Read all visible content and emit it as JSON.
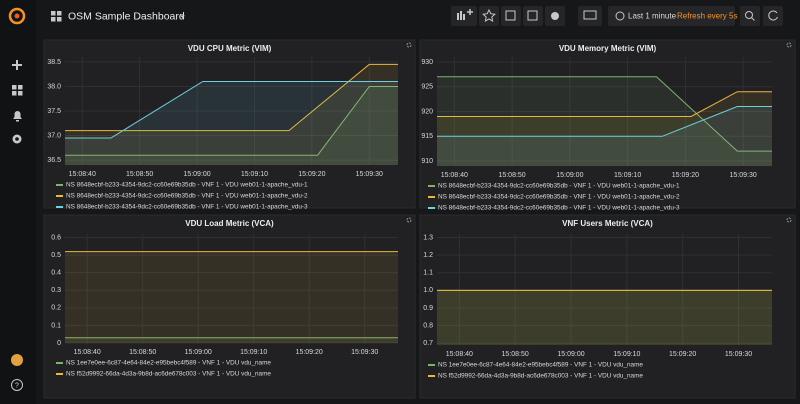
{
  "header": {
    "title": "OSM Sample Dashboard",
    "time_range": "Last 1 minute",
    "refresh": "Refresh every 5s"
  },
  "chart_data": [
    {
      "type": "line",
      "title": "VDU CPU Metric (VIM)",
      "area": true,
      "grid": true,
      "xlim": [
        "15:08:37",
        "15:09:35"
      ],
      "xticks": [
        "15:08:40",
        "15:08:50",
        "15:09:00",
        "15:09:10",
        "15:09:20",
        "15:09:30"
      ],
      "ylim": [
        36.4,
        38.6
      ],
      "yticks": [
        36.5,
        {
          "value": 37,
          "label": "37.0"
        },
        37.5,
        {
          "value": 38,
          "label": "38.0"
        },
        38.5
      ],
      "series": [
        {
          "name": "NS 8648ecbf-b233-4354-9dc2-cc60e69b35db - VNF 1 - VDU web01-1-apache_vdu-1",
          "color": "#7eb26d",
          "x": [
            "15:08:37",
            "15:09:21",
            "15:09:30",
            "15:09:35"
          ],
          "values": [
            36.6,
            36.6,
            38.0,
            38.0
          ]
        },
        {
          "name": "NS 8648ecbf-b233-4354-9dc2-cc60e69b35db - VNF 1 - VDU web01-1-apache_vdu-2",
          "color": "#eab839",
          "x": [
            "15:08:37",
            "15:09:16",
            "15:09:30",
            "15:09:35"
          ],
          "values": [
            37.1,
            37.1,
            38.45,
            38.45
          ]
        },
        {
          "name": "NS 8648ecbf-b233-4354-9dc2-cc60e69b35db - VNF 1 - VDU web01-1-apache_vdu-3",
          "color": "#6ed0e0",
          "x": [
            "15:08:37",
            "15:08:45",
            "15:09:01",
            "15:09:35"
          ],
          "values": [
            36.95,
            36.95,
            38.1,
            38.1
          ]
        }
      ]
    },
    {
      "type": "line",
      "title": "VDU Memory Metric (VIM)",
      "area": true,
      "grid": true,
      "xlim": [
        "15:08:37",
        "15:09:35"
      ],
      "xticks": [
        "15:08:40",
        "15:08:50",
        "15:09:00",
        "15:09:10",
        "15:09:20",
        "15:09:30"
      ],
      "ylim": [
        909,
        931
      ],
      "yticks": [
        910,
        915,
        920,
        925,
        930
      ],
      "series": [
        {
          "name": "NS 8648ecbf-b233-4354-9dc2-cc60e69b35db - VNF 1 - VDU web01-1-apache_vdu-1",
          "color": "#7eb26d",
          "x": [
            "15:08:37",
            "15:09:15",
            "15:09:29",
            "15:09:35"
          ],
          "values": [
            927,
            927,
            912,
            912
          ]
        },
        {
          "name": "NS 8648ecbf-b233-4354-9dc2-cc60e69b35db - VNF 1 - VDU web01-1-apache_vdu-2",
          "color": "#eab839",
          "x": [
            "15:08:37",
            "15:09:21",
            "15:09:29",
            "15:09:35"
          ],
          "values": [
            919,
            919,
            924,
            924
          ]
        },
        {
          "name": "NS 8648ecbf-b233-4354-9dc2-cc60e69b35db - VNF 1 - VDU web01-1-apache_vdu-3",
          "color": "#6ed0e0",
          "x": [
            "15:08:37",
            "15:09:16",
            "15:09:29",
            "15:09:35"
          ],
          "values": [
            915,
            915,
            921,
            921
          ]
        }
      ]
    },
    {
      "type": "line",
      "title": "VDU Load Metric (VCA)",
      "area": true,
      "grid": true,
      "xlim": [
        "15:08:36",
        "15:09:36"
      ],
      "xticks": [
        "15:08:40",
        "15:08:50",
        "15:09:00",
        "15:09:10",
        "15:09:20",
        "15:09:30"
      ],
      "ylim": [
        0,
        0.62
      ],
      "yticks": [
        0,
        0.1,
        0.2,
        0.3,
        0.4,
        0.5,
        0.6
      ],
      "series": [
        {
          "name": "NS 1ee7e0ee-6c87-4e64-84e2-e95bebc4f589 - VNF 1 - VDU vdu_name",
          "color": "#7eb26d",
          "x": [
            "15:08:36",
            "15:09:36"
          ],
          "values": [
            0.03,
            0.03
          ]
        },
        {
          "name": "NS f52d9992-66da-4d3a-9b8d-ac6de678c003 - VNF 1 - VDU vdu_name",
          "color": "#eab839",
          "x": [
            "15:08:36",
            "15:09:36"
          ],
          "values": [
            0.52,
            0.52
          ]
        }
      ]
    },
    {
      "type": "line",
      "title": "VNF Users Metric (VCA)",
      "area": true,
      "grid": true,
      "xlim": [
        "15:08:36",
        "15:09:36"
      ],
      "xticks": [
        "15:08:40",
        "15:08:50",
        "15:09:00",
        "15:09:10",
        "15:09:20",
        "15:09:30"
      ],
      "ylim": [
        0.69,
        1.32
      ],
      "yticks": [
        0.7,
        0.8,
        0.9,
        {
          "value": 1,
          "label": "1.0"
        },
        1.1,
        1.2,
        1.3
      ],
      "series": [
        {
          "name": "NS 1ee7e0ee-6c87-4e64-84e2-e95bebc4f589 - VNF 1 - VDU vdu_name",
          "color": "#7eb26d",
          "x": [
            "15:08:36",
            "15:09:36"
          ],
          "values": [
            1,
            1
          ]
        },
        {
          "name": "NS f52d9992-66da-4d3a-9b8d-ac6de678c003 - VNF 1 - VDU vdu_name",
          "color": "#eab839",
          "x": [
            "15:08:36",
            "15:09:36"
          ],
          "values": [
            1,
            1
          ]
        }
      ]
    }
  ]
}
